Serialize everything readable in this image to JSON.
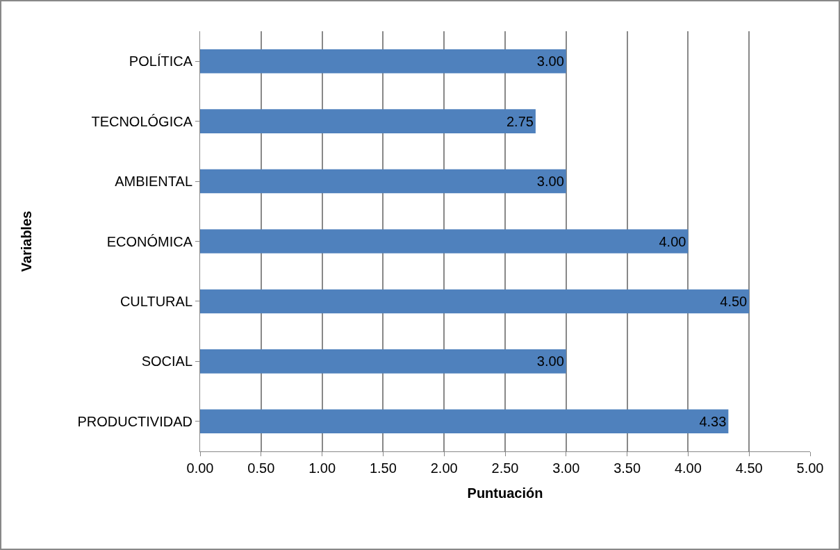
{
  "chart_data": {
    "type": "bar",
    "orientation": "horizontal",
    "xlabel": "Puntuación",
    "ylabel": "Variables",
    "categories": [
      "POLÍTICA",
      "TECNOLÓGICA",
      "AMBIENTAL",
      "ECONÓMICA",
      "CULTURAL",
      "SOCIAL",
      "PRODUCTIVIDAD"
    ],
    "values": [
      3.0,
      2.75,
      3.0,
      4.0,
      4.5,
      3.0,
      4.33
    ],
    "value_labels": [
      "3.00",
      "2.75",
      "3.00",
      "4.00",
      "4.50",
      "3.00",
      "4.33"
    ],
    "color": "#4f81bd",
    "xlim": [
      0,
      5
    ],
    "xticks": [
      {
        "value": 0,
        "label": "0.00"
      },
      {
        "value": 0.5,
        "label": "0.50"
      },
      {
        "value": 1,
        "label": "1.00"
      },
      {
        "value": 1.5,
        "label": "1.50"
      },
      {
        "value": 2,
        "label": "2.00"
      },
      {
        "value": 2.5,
        "label": "2.50"
      },
      {
        "value": 3,
        "label": "3.00"
      },
      {
        "value": 3.5,
        "label": "3.50"
      },
      {
        "value": 4,
        "label": "4.00"
      },
      {
        "value": 4.5,
        "label": "4.50"
      },
      {
        "value": 5,
        "label": "5.00"
      }
    ],
    "grid": "x"
  }
}
